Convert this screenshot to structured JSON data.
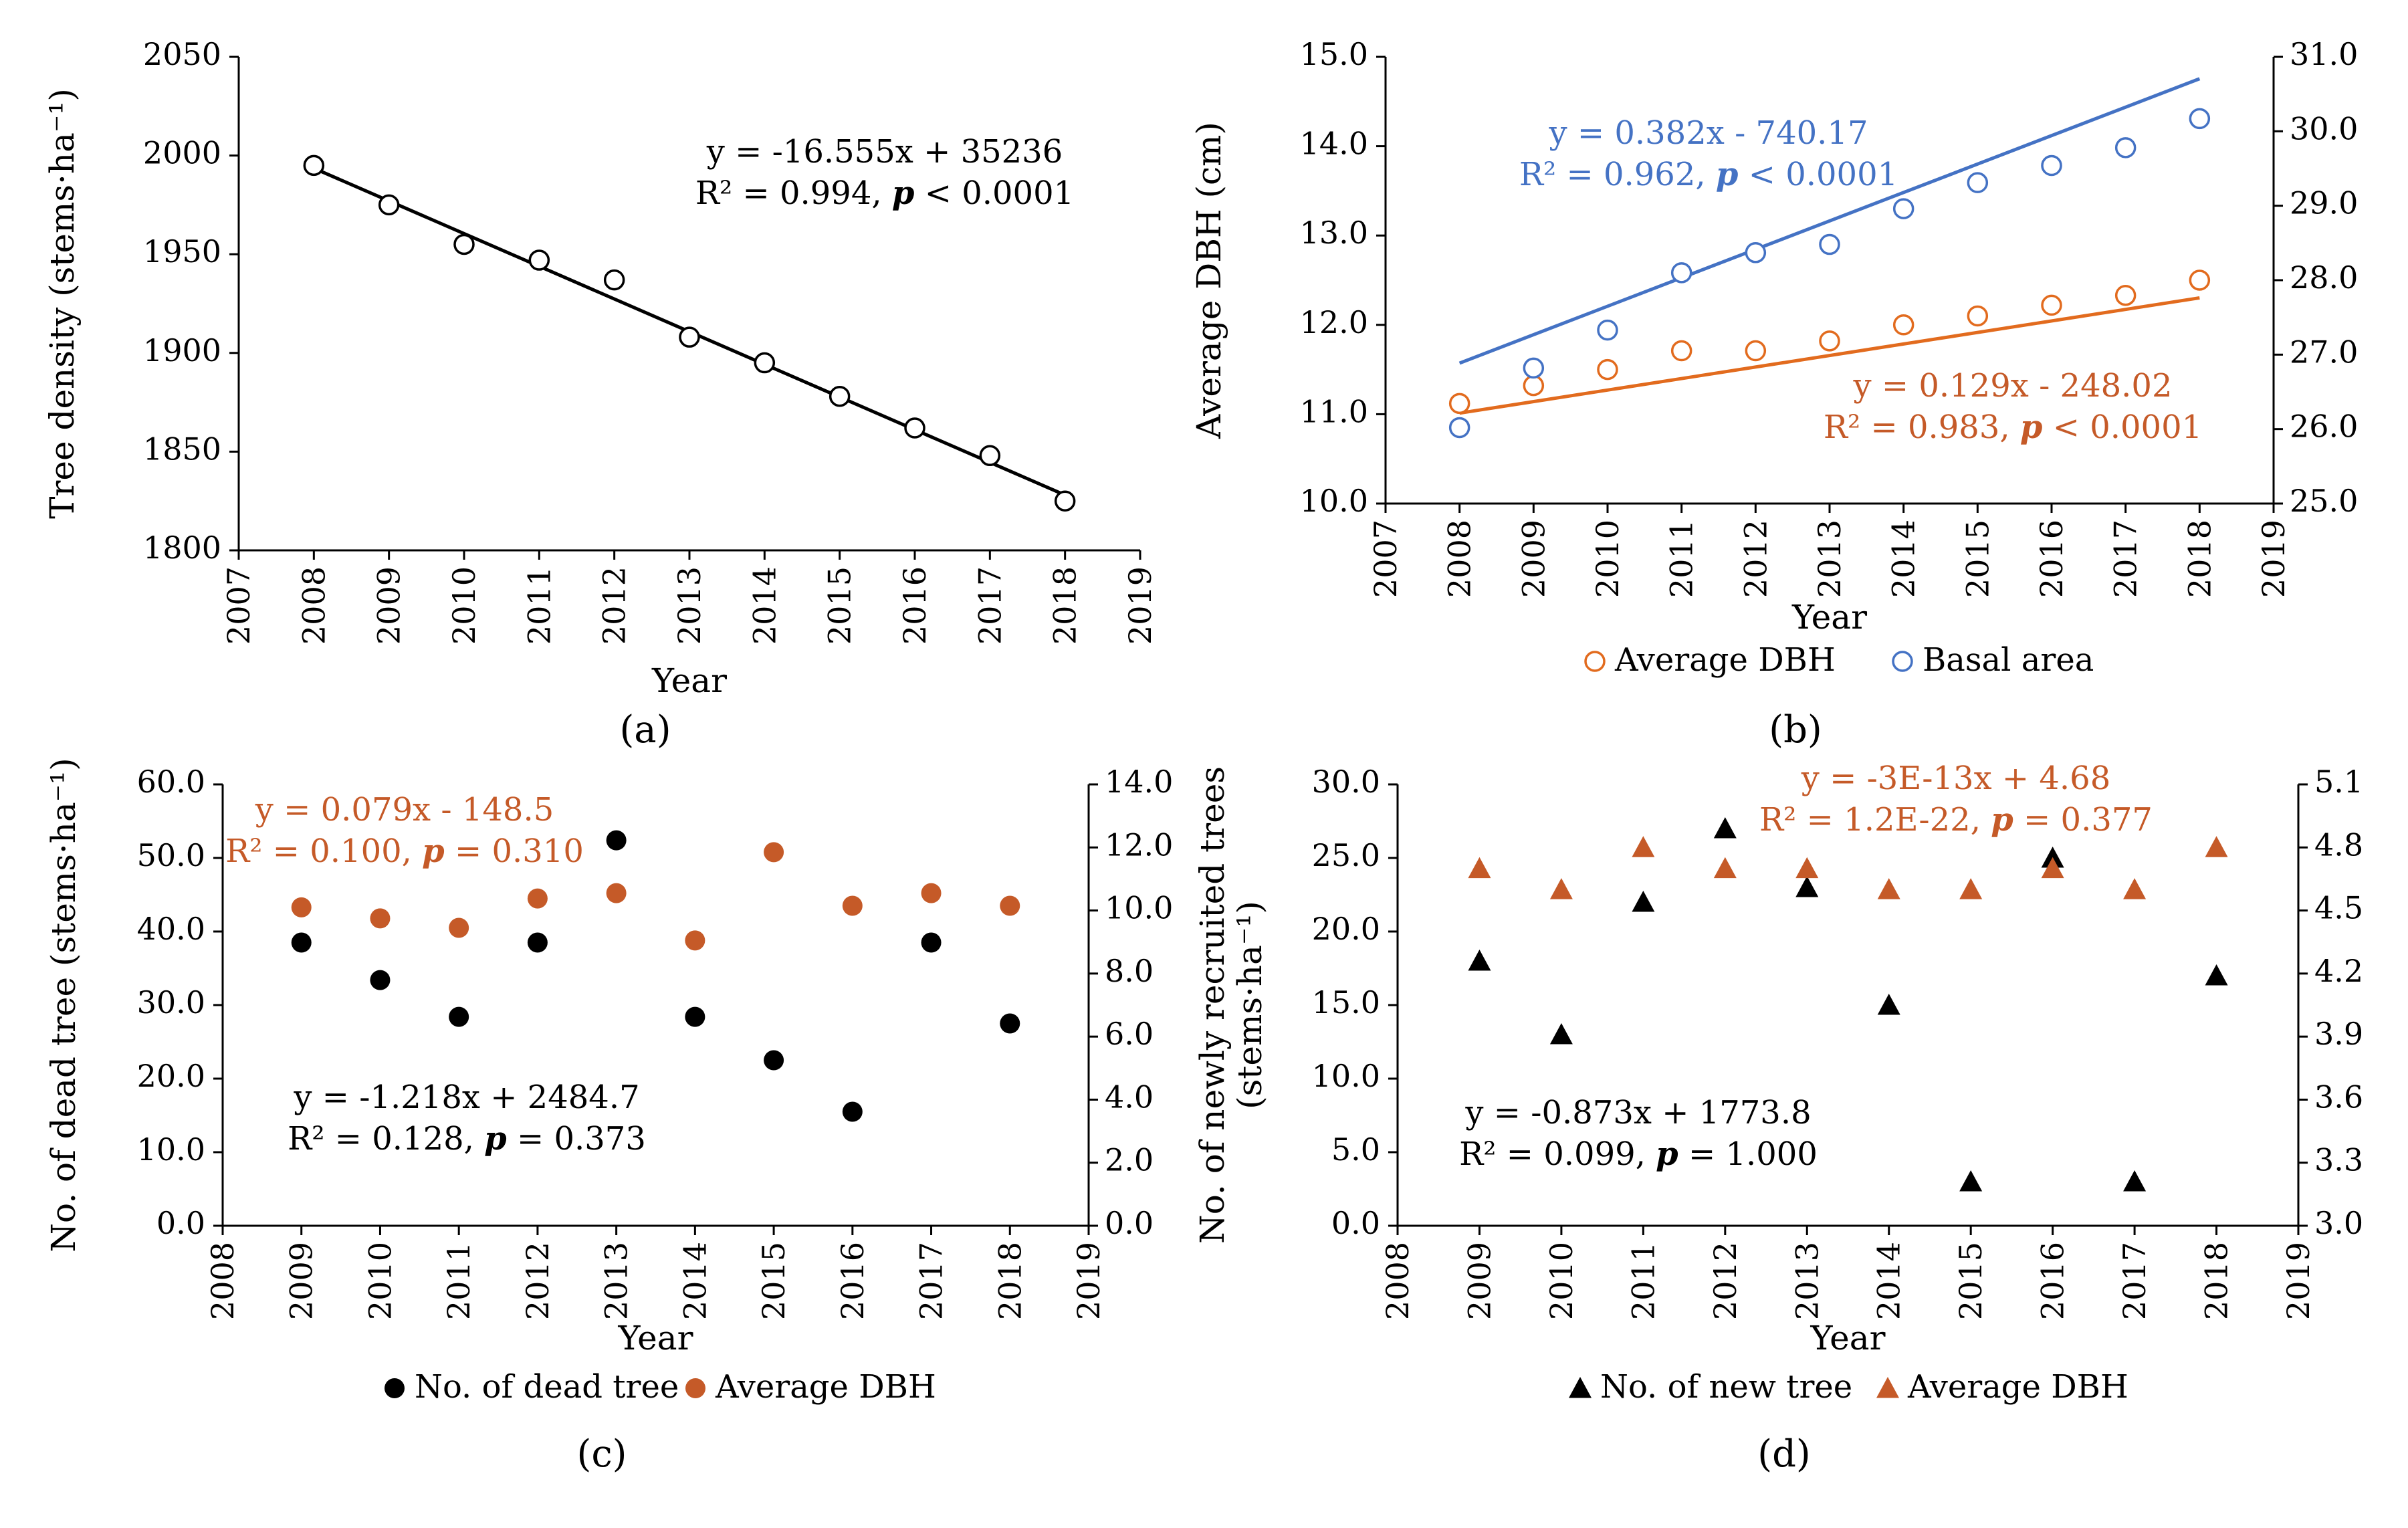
{
  "colors": {
    "black": "#000000",
    "orange": "#E26B1E",
    "blue": "#4472C4",
    "orange_dark": "#C55A28"
  },
  "chart_data": [
    {
      "type": "scatter",
      "panel_label": "(a)",
      "xlabel": "Year",
      "ylabel": "Tree density (stems·ha⁻¹)",
      "xlim": [
        2007,
        2019
      ],
      "xticks": [
        "2007",
        "2008",
        "2009",
        "2010",
        "2011",
        "2012",
        "2013",
        "2014",
        "2015",
        "2016",
        "2017",
        "2018",
        "2019"
      ],
      "ylim": [
        1800,
        2050
      ],
      "yticks": [
        "1800",
        "1850",
        "1900",
        "1950",
        "2000",
        "2050"
      ],
      "series": [
        {
          "name": "Tree density",
          "marker": "open-circle",
          "color": "#000000",
          "x": [
            2008,
            2009,
            2010,
            2011,
            2012,
            2013,
            2014,
            2015,
            2016,
            2017,
            2018
          ],
          "y": [
            1995,
            1975,
            1955,
            1947,
            1937,
            1908,
            1895,
            1878,
            1862,
            1848,
            1825
          ],
          "trend": {
            "slope": -16.555,
            "intercept": 35236,
            "x_range": [
              2008,
              2018
            ]
          }
        }
      ],
      "annotations": [
        {
          "lines": [
            "y = -16.555x + 35236",
            "R² = 0.994, p < 0.0001"
          ],
          "color": "#000000"
        }
      ]
    },
    {
      "type": "scatter",
      "panel_label": "(b)",
      "xlabel": "Year",
      "ylabel": "Average DBH (cm)",
      "y2label": "",
      "xlim": [
        2007,
        2019
      ],
      "xticks": [
        "2007",
        "2008",
        "2009",
        "2010",
        "2011",
        "2012",
        "2013",
        "2014",
        "2015",
        "2016",
        "2017",
        "2018",
        "2019"
      ],
      "ylim": [
        10,
        15
      ],
      "yticks": [
        "10.0",
        "11.0",
        "12.0",
        "13.0",
        "14.0",
        "15.0"
      ],
      "y2lim": [
        25,
        31
      ],
      "y2ticks": [
        "25.0",
        "26.0",
        "27.0",
        "28.0",
        "29.0",
        "30.0",
        "31.0"
      ],
      "series": [
        {
          "name": "Average DBH",
          "marker": "open-circle",
          "color": "#E26B1E",
          "axis": "left",
          "x": [
            2008,
            2009,
            2010,
            2011,
            2012,
            2013,
            2014,
            2015,
            2016,
            2017,
            2018
          ],
          "y": [
            11.12,
            11.32,
            11.5,
            11.71,
            11.71,
            11.82,
            12.0,
            12.1,
            12.22,
            12.33,
            12.5
          ],
          "trend": {
            "slope": 0.129,
            "intercept": -248.02,
            "x_range": [
              2008,
              2018
            ]
          }
        },
        {
          "name": "Basal area",
          "marker": "open-circle",
          "color": "#4472C4",
          "axis": "right",
          "x": [
            2008,
            2009,
            2010,
            2011,
            2012,
            2013,
            2014,
            2015,
            2016,
            2017,
            2018
          ],
          "y": [
            26.02,
            26.82,
            27.33,
            28.1,
            28.37,
            28.48,
            28.96,
            29.31,
            29.54,
            29.78,
            30.17
          ],
          "trend": {
            "slope": 0.382,
            "intercept": -740.17,
            "x_range": [
              2008,
              2018
            ]
          }
        }
      ],
      "legend": [
        "Average DBH",
        "Basal area"
      ],
      "annotations": [
        {
          "lines": [
            "y = 0.382x - 740.17",
            "R² = 0.962, p < 0.0001"
          ],
          "color": "#4472C4"
        },
        {
          "lines": [
            "y = 0.129x - 248.02",
            "R² = 0.983, p < 0.0001"
          ],
          "color": "#C55A28"
        }
      ]
    },
    {
      "type": "scatter",
      "panel_label": "(c)",
      "xlabel": "Year",
      "ylabel": "No. of dead tree (stems·ha⁻¹)",
      "xlim": [
        2008,
        2019
      ],
      "xticks": [
        "2008",
        "2009",
        "2010",
        "2011",
        "2012",
        "2013",
        "2014",
        "2015",
        "2016",
        "2017",
        "2018",
        "2019"
      ],
      "ylim": [
        0,
        60
      ],
      "yticks": [
        "0.0",
        "10.0",
        "20.0",
        "30.0",
        "40.0",
        "50.0",
        "60.0"
      ],
      "y2lim": [
        0,
        14
      ],
      "y2ticks": [
        "0.0",
        "2.0",
        "4.0",
        "6.0",
        "8.0",
        "10.0",
        "12.0",
        "14.0"
      ],
      "series": [
        {
          "name": "No. of dead tree",
          "marker": "filled-circle",
          "color": "#000000",
          "axis": "left",
          "x": [
            2009,
            2010,
            2011,
            2012,
            2013,
            2014,
            2015,
            2016,
            2017,
            2018
          ],
          "y": [
            38.5,
            33.4,
            28.4,
            38.5,
            52.4,
            28.4,
            22.5,
            15.5,
            38.5,
            27.5
          ]
        },
        {
          "name": "Average DBH",
          "marker": "filled-circle",
          "color": "#C55A28",
          "axis": "right",
          "x": [
            2009,
            2010,
            2011,
            2012,
            2013,
            2014,
            2015,
            2016,
            2017,
            2018
          ],
          "y": [
            10.1,
            9.75,
            9.45,
            10.38,
            10.55,
            9.05,
            11.85,
            10.15,
            10.55,
            10.15
          ]
        }
      ],
      "legend": [
        "No. of dead tree",
        "Average DBH"
      ],
      "annotations": [
        {
          "lines": [
            "y = 0.079x - 148.5",
            "R² = 0.100, p = 0.310"
          ],
          "color": "#C55A28"
        },
        {
          "lines": [
            "y = -1.218x + 2484.7",
            "R² = 0.128, p = 0.373"
          ],
          "color": "#000000"
        }
      ]
    },
    {
      "type": "scatter",
      "panel_label": "(d)",
      "xlabel": "Year",
      "ylabel": [
        "No. of newly recruited trees",
        "(stems·ha⁻¹)"
      ],
      "xlim": [
        2008,
        2019
      ],
      "xticks": [
        "2008",
        "2009",
        "2010",
        "2011",
        "2012",
        "2013",
        "2014",
        "2015",
        "2016",
        "2017",
        "2018",
        "2019"
      ],
      "ylim": [
        0,
        30
      ],
      "yticks": [
        "0.0",
        "5.0",
        "10.0",
        "15.0",
        "20.0",
        "25.0",
        "30.0"
      ],
      "y2lim": [
        3.0,
        5.1
      ],
      "y2ticks": [
        "3.0",
        "3.3",
        "3.6",
        "3.9",
        "4.2",
        "4.5",
        "4.8",
        "5.1"
      ],
      "series": [
        {
          "name": "No. of new tree",
          "marker": "filled-triangle",
          "color": "#000000",
          "axis": "left",
          "x": [
            2009,
            2010,
            2011,
            2012,
            2013,
            2014,
            2015,
            2016,
            2017,
            2018
          ],
          "y": [
            18,
            13,
            22,
            27,
            23,
            15,
            3,
            25,
            3,
            17
          ]
        },
        {
          "name": "Average DBH",
          "marker": "filled-triangle",
          "color": "#C55A28",
          "axis": "right",
          "x": [
            2009,
            2010,
            2011,
            2012,
            2013,
            2014,
            2015,
            2016,
            2017,
            2018
          ],
          "y": [
            4.7,
            4.6,
            4.8,
            4.7,
            4.7,
            4.6,
            4.6,
            4.7,
            4.6,
            4.8
          ]
        }
      ],
      "legend": [
        "No. of new tree",
        "Average DBH"
      ],
      "annotations": [
        {
          "lines": [
            "y = -3E-13x + 4.68",
            "R² = 1.2E-22, p = 0.377"
          ],
          "color": "#C55A28"
        },
        {
          "lines": [
            "y = -0.873x + 1773.8",
            "R² = 0.099, p = 1.000"
          ],
          "color": "#000000"
        }
      ]
    }
  ]
}
